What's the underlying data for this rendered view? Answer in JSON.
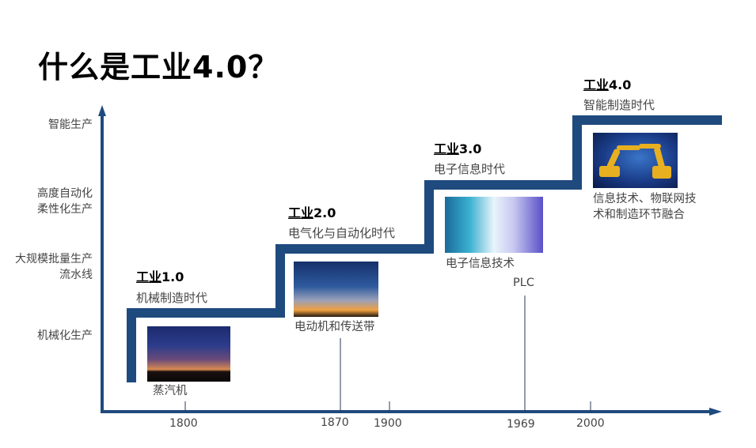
{
  "title": "什么是工业4.0？",
  "colors": {
    "axis": "#1f4a7e",
    "staircase": "#1f4a7e"
  },
  "y_axis_levels": [
    {
      "lines": [
        "智能生产"
      ]
    },
    {
      "lines": [
        "高度自动化",
        "柔性化生产"
      ]
    },
    {
      "lines": [
        "大规模批量生产",
        "流水线"
      ]
    },
    {
      "lines": [
        "机械化生产"
      ]
    }
  ],
  "eras": [
    {
      "prefix": "工业",
      "version": "1.0",
      "subtitle": "机械制造时代",
      "image": "steam-engine-smoke",
      "caption": "蒸汽机"
    },
    {
      "prefix": "工业",
      "version": "2.0",
      "subtitle": "电气化与自动化时代",
      "image": "power-tower-sunset",
      "caption": "电动机和传送带"
    },
    {
      "prefix": "工业",
      "version": "3.0",
      "subtitle": "电子信息时代",
      "image": "electronic-information-laptop",
      "caption": "电子信息技术"
    },
    {
      "prefix": "工业",
      "version": "4.0",
      "subtitle": "智能制造时代",
      "image": "industrial-robots",
      "caption_lines": [
        "信息技术、物联网技",
        "术和制造环节融合"
      ]
    }
  ],
  "markers": {
    "plc": "PLC"
  },
  "years": [
    "1800",
    "1870",
    "1900",
    "1969",
    "2000"
  ]
}
